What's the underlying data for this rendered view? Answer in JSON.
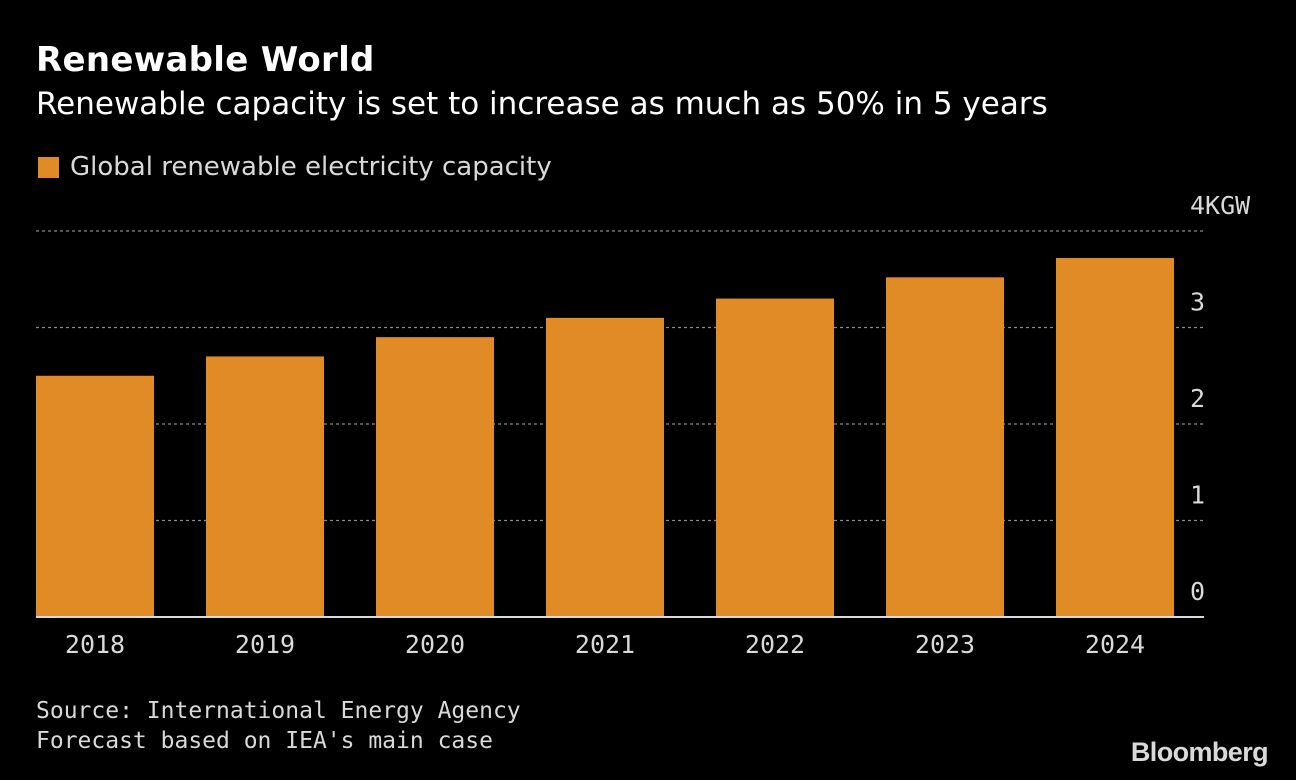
{
  "header": {
    "title": "Renewable World",
    "subtitle": "Renewable capacity is set to increase as much as 50% in 5 years"
  },
  "legend": {
    "label": "Global renewable electricity capacity"
  },
  "footer": {
    "source": "Source: International Energy Agency",
    "note": "Forecast based on IEA's main case",
    "brand": "Bloomberg"
  },
  "colors": {
    "background": "#000000",
    "bar": "#e08b25",
    "grid": "#8a8a8a",
    "baseline": "#d9d9d9",
    "text": "#ffffff",
    "muted_text": "#d9d9d9"
  },
  "chart_data": {
    "type": "bar",
    "title": "Renewable World",
    "subtitle": "Renewable capacity is set to increase as much as 50% in 5 years",
    "categories": [
      "2018",
      "2019",
      "2020",
      "2021",
      "2022",
      "2023",
      "2024"
    ],
    "series": [
      {
        "name": "Global renewable electricity capacity",
        "values": [
          2.5,
          2.7,
          2.9,
          3.1,
          3.3,
          3.52,
          3.72
        ]
      }
    ],
    "unit": "GW",
    "ylim": [
      0,
      4
    ],
    "y_ticks": [
      0,
      1,
      2,
      3,
      4
    ],
    "y_tick_labels": [
      "0",
      "1",
      "2",
      "3",
      "4KGW"
    ],
    "y_axis_position": "right",
    "grid": true,
    "grid_style": "dotted",
    "legend_position": "top-left",
    "xlabel": "",
    "ylabel": ""
  }
}
